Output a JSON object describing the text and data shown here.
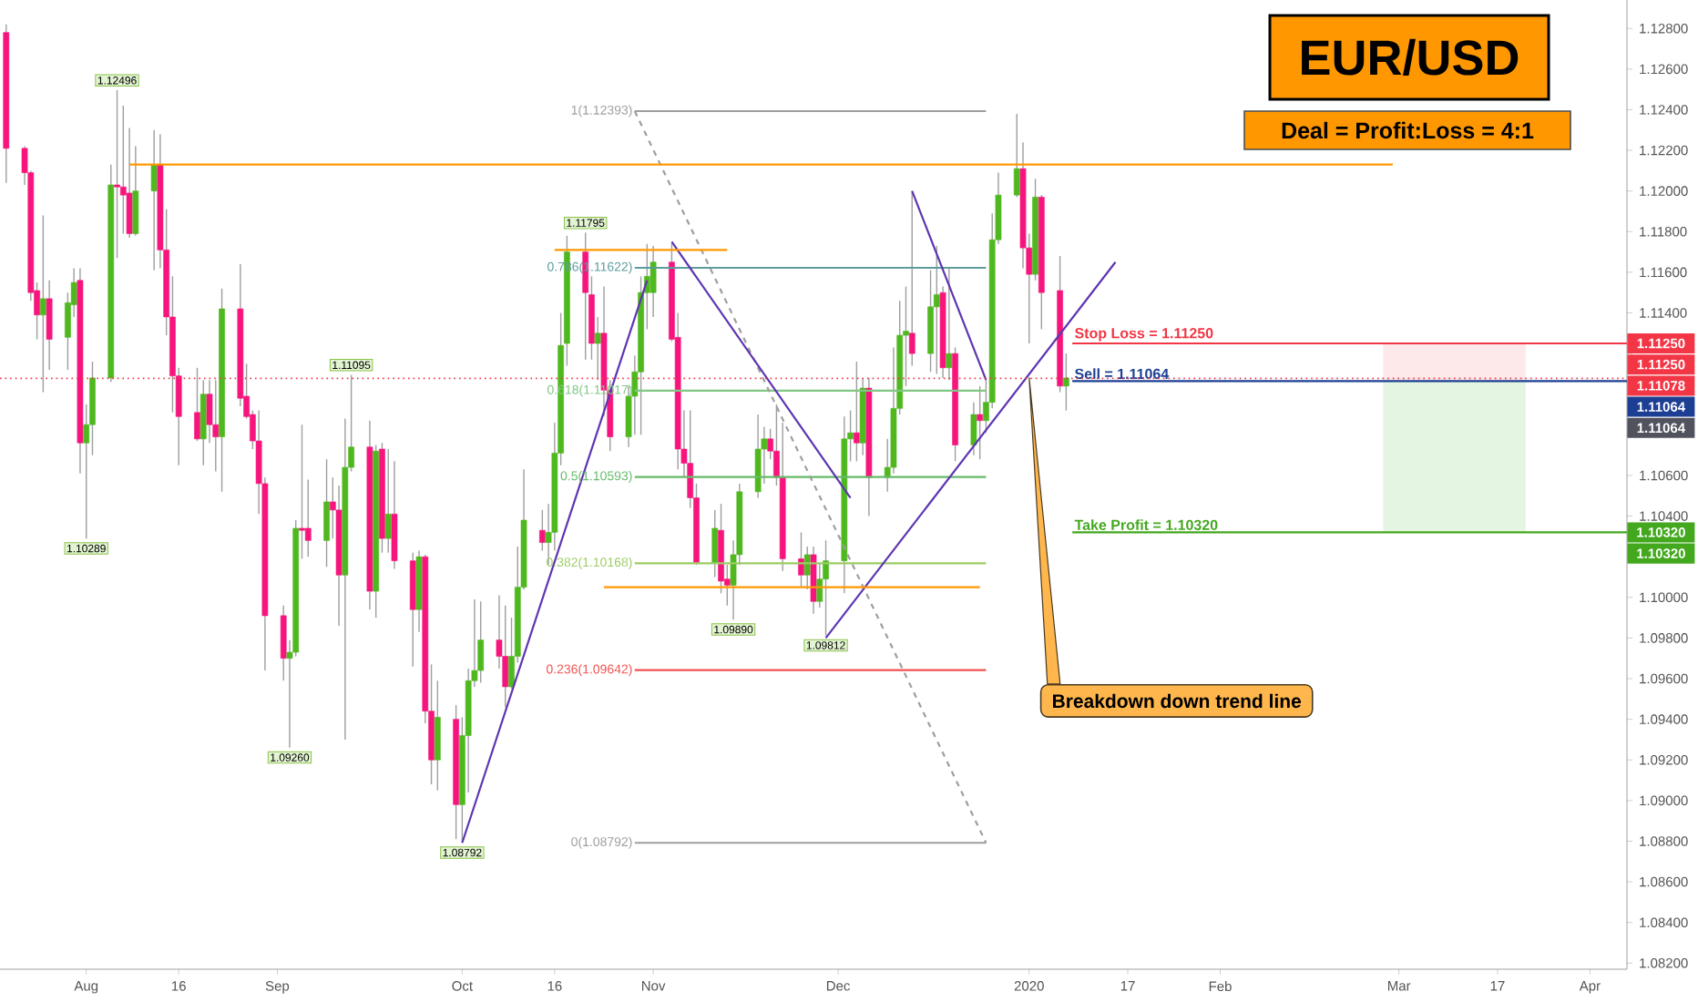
{
  "chart_data": {
    "type": "candlestick",
    "title": "EUR/USD",
    "subtitle": "Deal = Profit:Loss = 4:1",
    "xlim": [
      "2019-07-18",
      "2020-04-07"
    ],
    "xticks": [
      {
        "value": "2019-08-01",
        "label": "Aug"
      },
      {
        "value": "2019-08-16",
        "label": "16"
      },
      {
        "value": "2019-09-01",
        "label": "Sep"
      },
      {
        "value": "2019-10-01",
        "label": "Oct"
      },
      {
        "value": "2019-10-16",
        "label": "16"
      },
      {
        "value": "2019-11-01",
        "label": "Nov"
      },
      {
        "value": "2019-12-01",
        "label": "Dec"
      },
      {
        "value": "2020-01-01",
        "label": "2020"
      },
      {
        "value": "2020-01-17",
        "label": "17"
      },
      {
        "value": "2020-02-01",
        "label": "Feb"
      },
      {
        "value": "2020-03-01",
        "label": "Mar"
      },
      {
        "value": "2020-03-17",
        "label": "17"
      },
      {
        "value": "2020-04-01",
        "label": "Apr"
      }
    ],
    "ylim": [
      1.0817,
      1.1294
    ],
    "yticks": [
      {
        "value": 1.082,
        "label": "1.08200"
      },
      {
        "value": 1.084,
        "label": "1.08400"
      },
      {
        "value": 1.086,
        "label": "1.08600"
      },
      {
        "value": 1.088,
        "label": "1.08800"
      },
      {
        "value": 1.09,
        "label": "1.09000"
      },
      {
        "value": 1.092,
        "label": "1.09200"
      },
      {
        "value": 1.094,
        "label": "1.09400"
      },
      {
        "value": 1.096,
        "label": "1.09600"
      },
      {
        "value": 1.098,
        "label": "1.09800"
      },
      {
        "value": 1.1,
        "label": "1.10000"
      },
      {
        "value": 1.102,
        "label": null
      },
      {
        "value": 1.104,
        "label": "1.10400"
      },
      {
        "value": 1.106,
        "label": "1.10600"
      },
      {
        "value": 1.108,
        "label": null
      },
      {
        "value": 1.11,
        "label": null
      },
      {
        "value": 1.112,
        "label": null
      },
      {
        "value": 1.114,
        "label": "1.11400"
      },
      {
        "value": 1.116,
        "label": "1.11600"
      },
      {
        "value": 1.118,
        "label": "1.11800"
      },
      {
        "value": 1.12,
        "label": "1.12000"
      },
      {
        "value": 1.122,
        "label": "1.12200"
      },
      {
        "value": 1.124,
        "label": "1.12400"
      },
      {
        "value": 1.126,
        "label": "1.12600"
      },
      {
        "value": 1.128,
        "label": "1.12800"
      }
    ],
    "series": [
      {
        "x": [
          "2019-07-19",
          "2019-07-22",
          "2019-07-23",
          "2019-07-24",
          "2019-07-25",
          "2019-07-26",
          "2019-07-29",
          "2019-07-30",
          "2019-07-31",
          "2019-08-01",
          "2019-08-02",
          "2019-08-05",
          "2019-08-06",
          "2019-08-07",
          "2019-08-08",
          "2019-08-09",
          "2019-08-12",
          "2019-08-13",
          "2019-08-14",
          "2019-08-15",
          "2019-08-16",
          "2019-08-19",
          "2019-08-20",
          "2019-08-21",
          "2019-08-22",
          "2019-08-23",
          "2019-08-26",
          "2019-08-27",
          "2019-08-28",
          "2019-08-29",
          "2019-08-30",
          "2019-09-02",
          "2019-09-03",
          "2019-09-04",
          "2019-09-05",
          "2019-09-06",
          "2019-09-09",
          "2019-09-10",
          "2019-09-11",
          "2019-09-12",
          "2019-09-13",
          "2019-09-16",
          "2019-09-17",
          "2019-09-18",
          "2019-09-19",
          "2019-09-20",
          "2019-09-23",
          "2019-09-24",
          "2019-09-25",
          "2019-09-26",
          "2019-09-27",
          "2019-09-30",
          "2019-10-01",
          "2019-10-02",
          "2019-10-03",
          "2019-10-04",
          "2019-10-07",
          "2019-10-08",
          "2019-10-09",
          "2019-10-10",
          "2019-10-11",
          "2019-10-14",
          "2019-10-15",
          "2019-10-16",
          "2019-10-17",
          "2019-10-18",
          "2019-10-21",
          "2019-10-22",
          "2019-10-23",
          "2019-10-24",
          "2019-10-25",
          "2019-10-28",
          "2019-10-29",
          "2019-10-30",
          "2019-10-31",
          "2019-11-01",
          "2019-11-04",
          "2019-11-05",
          "2019-11-06",
          "2019-11-07",
          "2019-11-08",
          "2019-11-11",
          "2019-11-12",
          "2019-11-13",
          "2019-11-14",
          "2019-11-15",
          "2019-11-18",
          "2019-11-19",
          "2019-11-20",
          "2019-11-21",
          "2019-11-22",
          "2019-11-25",
          "2019-11-26",
          "2019-11-27",
          "2019-11-28",
          "2019-11-29",
          "2019-12-02",
          "2019-12-03",
          "2019-12-04",
          "2019-12-05",
          "2019-12-06",
          "2019-12-09",
          "2019-12-10",
          "2019-12-11",
          "2019-12-12",
          "2019-12-13",
          "2019-12-16",
          "2019-12-17",
          "2019-12-18",
          "2019-12-19",
          "2019-12-20",
          "2019-12-23",
          "2019-12-24",
          "2019-12-25",
          "2019-12-26",
          "2019-12-27",
          "2019-12-30",
          "2019-12-31",
          "2020-01-01",
          "2020-01-02",
          "2020-01-03",
          "2020-01-06",
          "2020-01-07"
        ],
        "ohlc": [
          [
            1.1278,
            1.1282,
            1.1204,
            1.1221
          ],
          [
            1.1221,
            1.1222,
            1.1203,
            1.1209
          ],
          [
            1.1209,
            1.121,
            1.1146,
            1.115
          ],
          [
            1.1151,
            1.1155,
            1.1127,
            1.1139
          ],
          [
            1.1139,
            1.1188,
            1.1101,
            1.1147
          ],
          [
            1.1147,
            1.1156,
            1.1112,
            1.1127
          ],
          [
            1.1128,
            1.115,
            1.1112,
            1.1145
          ],
          [
            1.1144,
            1.1162,
            1.1138,
            1.1155
          ],
          [
            1.1156,
            1.1162,
            1.1061,
            1.1076
          ],
          [
            1.1076,
            1.1095,
            1.10289,
            1.1085
          ],
          [
            1.1085,
            1.1116,
            1.107,
            1.1108
          ],
          [
            1.1108,
            1.1213,
            1.1106,
            1.1203
          ],
          [
            1.1203,
            1.12496,
            1.1167,
            1.1202
          ],
          [
            1.1202,
            1.1242,
            1.1179,
            1.1198
          ],
          [
            1.1199,
            1.1231,
            1.1177,
            1.1179
          ],
          [
            1.1179,
            1.1222,
            1.1178,
            1.12
          ],
          [
            1.12,
            1.123,
            1.1161,
            1.1213
          ],
          [
            1.1213,
            1.1228,
            1.1162,
            1.1171
          ],
          [
            1.1171,
            1.1191,
            1.1129,
            1.1138
          ],
          [
            1.1138,
            1.1158,
            1.1091,
            1.1109
          ],
          [
            1.1109,
            1.1113,
            1.1065,
            1.1089
          ],
          [
            1.1091,
            1.1113,
            1.1077,
            1.1078
          ],
          [
            1.1078,
            1.1107,
            1.1065,
            1.11
          ],
          [
            1.11,
            1.1107,
            1.1076,
            1.1085
          ],
          [
            1.1085,
            1.1107,
            1.1062,
            1.1079
          ],
          [
            1.1079,
            1.1152,
            1.1052,
            1.1142
          ],
          [
            1.1142,
            1.1164,
            1.1094,
            1.1098
          ],
          [
            1.1099,
            1.1115,
            1.1088,
            1.1089
          ],
          [
            1.109,
            1.1092,
            1.1073,
            1.1077
          ],
          [
            1.1077,
            1.1092,
            1.1041,
            1.1056
          ],
          [
            1.1056,
            1.1059,
            1.0964,
            1.0991
          ],
          [
            1.0991,
            1.0996,
            1.0959,
            1.097
          ],
          [
            1.097,
            1.0979,
            1.0926,
            1.0973
          ],
          [
            1.0973,
            1.1038,
            1.0971,
            1.1034
          ],
          [
            1.1034,
            1.1085,
            1.1019,
            1.1033
          ],
          [
            1.1034,
            1.1058,
            1.102,
            1.1028
          ],
          [
            1.1028,
            1.1068,
            1.1015,
            1.1047
          ],
          [
            1.1047,
            1.1059,
            1.1029,
            1.1043
          ],
          [
            1.1043,
            1.1055,
            1.0986,
            1.1011
          ],
          [
            1.1011,
            1.1088,
            1.093,
            1.1064
          ],
          [
            1.1064,
            1.11095,
            1.1062,
            1.1074
          ],
          [
            1.1074,
            1.1087,
            1.0994,
            1.1003
          ],
          [
            1.1003,
            1.1075,
            1.099,
            1.1072
          ],
          [
            1.1073,
            1.1076,
            1.1022,
            1.1029
          ],
          [
            1.1029,
            1.1073,
            1.1022,
            1.1041
          ],
          [
            1.1041,
            1.1067,
            1.1014,
            1.1018
          ],
          [
            1.1018,
            1.1022,
            1.0966,
            1.0994
          ],
          [
            1.0994,
            1.1023,
            1.0983,
            1.102
          ],
          [
            1.102,
            1.1021,
            1.0938,
            1.0944
          ],
          [
            1.0944,
            1.0967,
            1.0908,
            1.092
          ],
          [
            1.092,
            1.0959,
            1.0905,
            1.0941
          ],
          [
            1.094,
            1.0947,
            1.0881,
            1.0898
          ],
          [
            1.0898,
            1.0941,
            1.08792,
            1.0932
          ],
          [
            1.0932,
            1.0965,
            1.0904,
            1.0959
          ],
          [
            1.0959,
            1.0999,
            1.0956,
            1.0964
          ],
          [
            1.0964,
            1.0998,
            1.0958,
            1.0979
          ],
          [
            1.0979,
            1.1001,
            1.0965,
            1.0971
          ],
          [
            1.0971,
            1.0996,
            1.0946,
            1.0956
          ],
          [
            1.0956,
            1.099,
            1.0955,
            1.0971
          ],
          [
            1.0971,
            1.1025,
            1.0968,
            1.1005
          ],
          [
            1.1005,
            1.1063,
            1.1004,
            1.1038
          ],
          [
            1.1033,
            1.1043,
            1.1023,
            1.1027
          ],
          [
            1.1027,
            1.1046,
            1.1016,
            1.1032
          ],
          [
            1.1032,
            1.1086,
            1.1023,
            1.1071
          ],
          [
            1.1071,
            1.114,
            1.1065,
            1.1124
          ],
          [
            1.1125,
            1.1178,
            1.1114,
            1.117
          ],
          [
            1.117,
            1.11795,
            1.1117,
            1.115
          ],
          [
            1.1149,
            1.1158,
            1.1117,
            1.1125
          ],
          [
            1.1125,
            1.1138,
            1.1107,
            1.113
          ],
          [
            1.113,
            1.1153,
            1.1089,
            1.1102
          ],
          [
            1.1102,
            1.1107,
            1.1072,
            1.1079
          ],
          [
            1.1079,
            1.1104,
            1.1074,
            1.1099
          ],
          [
            1.1099,
            1.1119,
            1.108,
            1.1111
          ],
          [
            1.1111,
            1.1158,
            1.108,
            1.115
          ],
          [
            1.115,
            1.1174,
            1.1132,
            1.1158
          ],
          [
            1.115,
            1.1173,
            1.1138,
            1.1165
          ],
          [
            1.1165,
            1.1174,
            1.1126,
            1.1127
          ],
          [
            1.1128,
            1.114,
            1.1063,
            1.1073
          ],
          [
            1.1073,
            1.1092,
            1.1059,
            1.1066
          ],
          [
            1.1066,
            1.1092,
            1.1044,
            1.1049
          ],
          [
            1.1049,
            1.1056,
            1.1016,
            1.1017
          ],
          [
            1.1017,
            1.1043,
            1.101,
            1.1034
          ],
          [
            1.1033,
            1.1046,
            1.1002,
            1.1008
          ],
          [
            1.1009,
            1.1016,
            1.0996,
            1.1006
          ],
          [
            1.1006,
            1.1028,
            1.0989,
            1.1021
          ],
          [
            1.1021,
            1.1056,
            1.1016,
            1.1052
          ],
          [
            1.1052,
            1.109,
            1.1049,
            1.1073
          ],
          [
            1.1073,
            1.1084,
            1.1056,
            1.1078
          ],
          [
            1.1078,
            1.1083,
            1.1068,
            1.1072
          ],
          [
            1.1072,
            1.1095,
            1.1055,
            1.1059
          ],
          [
            1.1059,
            1.1086,
            1.1013,
            1.1019
          ],
          [
            1.1019,
            1.1032,
            1.1005,
            1.1011
          ],
          [
            1.1011,
            1.1025,
            1.1004,
            1.1021
          ],
          [
            1.1021,
            1.1025,
            1.0992,
            1.0998
          ],
          [
            1.0998,
            1.1017,
            1.0995,
            1.1009
          ],
          [
            1.1009,
            1.1028,
            1.09812,
            1.1018
          ],
          [
            1.1018,
            1.1089,
            1.1002,
            1.1078
          ],
          [
            1.1078,
            1.1092,
            1.1067,
            1.1081
          ],
          [
            1.1081,
            1.1116,
            1.1067,
            1.1076
          ],
          [
            1.1076,
            1.1108,
            1.107,
            1.1103
          ],
          [
            1.1103,
            1.1108,
            1.104,
            1.1059
          ],
          [
            1.1059,
            1.1078,
            1.1052,
            1.1064
          ],
          [
            1.1064,
            1.1123,
            1.1061,
            1.1093
          ],
          [
            1.1093,
            1.1146,
            1.109,
            1.1129
          ],
          [
            1.1129,
            1.1153,
            1.1104,
            1.1131
          ],
          [
            1.113,
            1.12,
            1.1114,
            1.112
          ],
          [
            1.112,
            1.1161,
            1.1111,
            1.1143
          ],
          [
            1.1143,
            1.1173,
            1.111,
            1.1149
          ],
          [
            1.115,
            1.1153,
            1.1108,
            1.1113
          ],
          [
            1.1113,
            1.1162,
            1.1107,
            1.112
          ],
          [
            1.112,
            1.1123,
            1.1067,
            1.1075
          ],
          [
            1.1075,
            1.1096,
            1.107,
            1.109
          ],
          [
            1.109,
            1.1104,
            1.1068,
            1.1087
          ],
          [
            1.1087,
            1.1107,
            1.1081,
            1.1096
          ],
          [
            1.1096,
            1.1189,
            1.1093,
            1.1176
          ],
          [
            1.1176,
            1.1209,
            1.1174,
            1.1198
          ],
          [
            1.1198,
            1.1238,
            1.1197,
            1.1211
          ],
          [
            1.1211,
            1.1224,
            1.1162,
            1.1172
          ],
          [
            1.1172,
            1.1179,
            1.1125,
            1.1159
          ],
          [
            1.1159,
            1.1206,
            1.1156,
            1.1197
          ],
          [
            1.1197,
            1.1198,
            1.1132,
            1.115
          ],
          [
            1.1151,
            1.1168,
            1.1101,
            1.1104
          ],
          [
            1.1104,
            1.112,
            1.1092,
            1.1108
          ]
        ],
        "colors": [
          "#f7157d",
          "#f7157d",
          "#f7157d",
          "#f7157d",
          "#4fb81f",
          "#f7157d",
          "#4fb81f",
          "#4fb81f",
          "#f7157d",
          "#4fb81f",
          "#4fb81f",
          "#4fb81f",
          "#f7157d",
          "#f7157d",
          "#f7157d",
          "#4fb81f",
          "#4fb81f",
          "#f7157d",
          "#f7157d",
          "#f7157d",
          "#f7157d",
          "#f7157d",
          "#4fb81f",
          "#f7157d",
          "#f7157d",
          "#4fb81f",
          "#f7157d",
          "#f7157d",
          "#f7157d",
          "#f7157d",
          "#f7157d",
          "#f7157d",
          "#4fb81f",
          "#4fb81f",
          "#f7157d",
          "#f7157d",
          "#4fb81f",
          "#f7157d",
          "#f7157d",
          "#4fb81f",
          "#4fb81f",
          "#f7157d",
          "#4fb81f",
          "#f7157d",
          "#4fb81f",
          "#f7157d",
          "#f7157d",
          "#4fb81f",
          "#f7157d",
          "#f7157d",
          "#4fb81f",
          "#f7157d",
          "#4fb81f",
          "#4fb81f",
          "#4fb81f",
          "#4fb81f",
          "#f7157d",
          "#f7157d",
          "#4fb81f",
          "#4fb81f",
          "#4fb81f",
          "#f7157d",
          "#4fb81f",
          "#4fb81f",
          "#4fb81f",
          "#4fb81f",
          "#f7157d",
          "#f7157d",
          "#4fb81f",
          "#f7157d",
          "#f7157d",
          "#4fb81f",
          "#4fb81f",
          "#4fb81f",
          "#4fb81f",
          "#4fb81f",
          "#f7157d",
          "#f7157d",
          "#f7157d",
          "#f7157d",
          "#f7157d",
          "#4fb81f",
          "#f7157d",
          "#f7157d",
          "#4fb81f",
          "#4fb81f",
          "#4fb81f",
          "#4fb81f",
          "#f7157d",
          "#f7157d",
          "#f7157d",
          "#f7157d",
          "#4fb81f",
          "#f7157d",
          "#4fb81f",
          "#4fb81f",
          "#4fb81f",
          "#4fb81f",
          "#f7157d",
          "#4fb81f",
          "#f7157d",
          "#4fb81f",
          "#4fb81f",
          "#4fb81f",
          "#4fb81f",
          "#f7157d",
          "#4fb81f",
          "#4fb81f",
          "#f7157d",
          "#4fb81f",
          "#f7157d",
          "#4fb81f",
          "#f7157d",
          "#4fb81f",
          "#4fb81f",
          "#4fb81f",
          "#4fb81f",
          "#f7157d",
          "#f7157d",
          "#4fb81f",
          "#f7157d",
          "#f7157d",
          "#4fb81f"
        ]
      },
      {
        "type": "bar",
        "color": "#fde8ea",
        "x": [
          "2020-03-10"
        ],
        "values": [
          0.00186
        ],
        "base": [
          1.11064
        ]
      },
      {
        "type": "bar",
        "color": "#e4f5e1",
        "x": [
          "2020-03-10"
        ],
        "values": [
          0.00744
        ],
        "base": [
          1.1032
        ]
      },
      {
        "type": "line",
        "name": "1(1.12393)",
        "color": "#9e9e9e",
        "x": [
          "2019-10-29",
          "2019-12-25"
        ],
        "values": [
          1.12393,
          1.12393
        ]
      },
      {
        "type": "line",
        "name": "0.786(1.11622)",
        "color": "#5d9c9c",
        "x": [
          "2019-10-29",
          "2019-12-25"
        ],
        "values": [
          1.11622,
          1.11622
        ]
      },
      {
        "type": "line",
        "name": "0.618(1.11017)",
        "color": "#81c784",
        "x": [
          "2019-10-29",
          "2019-12-25"
        ],
        "values": [
          1.11017,
          1.11017
        ]
      },
      {
        "type": "line",
        "name": "0.5(1.10593)",
        "color": "#66bb6a",
        "x": [
          "2019-10-29",
          "2019-12-25"
        ],
        "values": [
          1.10593,
          1.10593
        ]
      },
      {
        "type": "line",
        "name": "0.382(1.10168)",
        "color": "#9ccc65",
        "x": [
          "2019-10-29",
          "2019-12-25"
        ],
        "values": [
          1.10168,
          1.10168
        ]
      },
      {
        "type": "line",
        "name": "0.236(1.09642)",
        "color": "#ef5350",
        "x": [
          "2019-10-29",
          "2019-12-25"
        ],
        "values": [
          1.09642,
          1.09642
        ]
      },
      {
        "type": "line",
        "name": "0(1.08792)",
        "color": "#9e9e9e",
        "x": [
          "2019-10-29",
          "2019-12-25"
        ],
        "values": [
          1.08792,
          1.08792
        ]
      },
      {
        "type": "line",
        "color": "#9e9e9e",
        "line_style": "dashed",
        "x": [
          "2019-10-29",
          "2019-12-25"
        ],
        "values": [
          1.12393,
          1.08792
        ]
      },
      {
        "type": "line",
        "color": "#5e35b1",
        "x": [
          "2019-10-01",
          "2019-10-31"
        ],
        "values": [
          1.08792,
          1.1156
        ]
      },
      {
        "type": "line",
        "color": "#5e35b1",
        "x": [
          "2019-11-04",
          "2019-12-03"
        ],
        "values": [
          1.1175,
          1.1049
        ]
      },
      {
        "type": "line",
        "color": "#5e35b1",
        "x": [
          "2019-11-29",
          "2020-01-15"
        ],
        "values": [
          1.098,
          1.1165
        ]
      },
      {
        "type": "line",
        "color": "#5e35b1",
        "x": [
          "2019-12-13",
          "2019-12-25"
        ],
        "values": [
          1.12,
          1.1107
        ]
      },
      {
        "type": "line",
        "color": "#ff9800",
        "x": [
          "2019-08-08",
          "2020-02-29"
        ],
        "values": [
          1.1213,
          1.1213
        ]
      },
      {
        "type": "line",
        "color": "#ff9800",
        "x": [
          "2019-10-16",
          "2019-11-13"
        ],
        "values": [
          1.1171,
          1.1171
        ]
      },
      {
        "type": "line",
        "color": "#ff9800",
        "x": [
          "2019-10-24",
          "2019-12-24"
        ],
        "values": [
          1.1005,
          1.1005
        ]
      },
      {
        "type": "line",
        "name": "Stop Loss = 1.11250",
        "color": "#f23645",
        "x": [
          "2020-01-08",
          "2020-04-07"
        ],
        "values": [
          1.1125,
          1.1125
        ]
      },
      {
        "type": "line",
        "name": "Sell = 1.11064",
        "color": "#1c3f94",
        "x": [
          "2020-01-08",
          "2020-04-07"
        ],
        "values": [
          1.11064,
          1.11064
        ]
      },
      {
        "type": "line",
        "name": "Take Profit = 1.10320",
        "color": "#43a81e",
        "x": [
          "2020-01-08",
          "2020-04-07"
        ],
        "values": [
          1.1032,
          1.1032
        ]
      }
    ],
    "ref_lines": [
      {
        "axis": "y",
        "value": 1.11078,
        "color": "#f23645",
        "line_style": "dotted"
      }
    ],
    "annotations": [
      {
        "text": "1.12496",
        "x": "2019-08-06",
        "y": 1.12496
      },
      {
        "text": "1.10289",
        "x": "2019-08-01",
        "y": 1.10289
      },
      {
        "text": "1.09260",
        "x": "2019-09-03",
        "y": 1.0926
      },
      {
        "text": "1.11095",
        "x": "2019-09-13",
        "y": 1.11095
      },
      {
        "text": "1.08792",
        "x": "2019-10-01",
        "y": 1.08792
      },
      {
        "text": "1.11795",
        "x": "2019-10-21",
        "y": 1.11795
      },
      {
        "text": "1.09890",
        "x": "2019-11-14",
        "y": 1.0989
      },
      {
        "text": "1.09812",
        "x": "2019-11-29",
        "y": 1.09812
      },
      {
        "text": "Breakdown down trend line",
        "x": "2020-01-01",
        "y": 1.1108
      },
      {
        "text": "1.11250",
        "x": "2020-04-07",
        "y": 1.1125
      },
      {
        "text": "1.11250",
        "x": "2020-04-07",
        "y": 1.1125
      },
      {
        "text": "1.11078",
        "x": "2020-04-07",
        "y": 1.11078
      },
      {
        "text": "1.11064",
        "x": "2020-04-07",
        "y": 1.11064
      },
      "1.11064",
      {
        "text": "1.10320",
        "x": "2020-04-07",
        "y": 1.1032
      },
      {
        "text": "1.10320",
        "x": "2020-04-07",
        "y": 1.1032
      }
    ]
  }
}
